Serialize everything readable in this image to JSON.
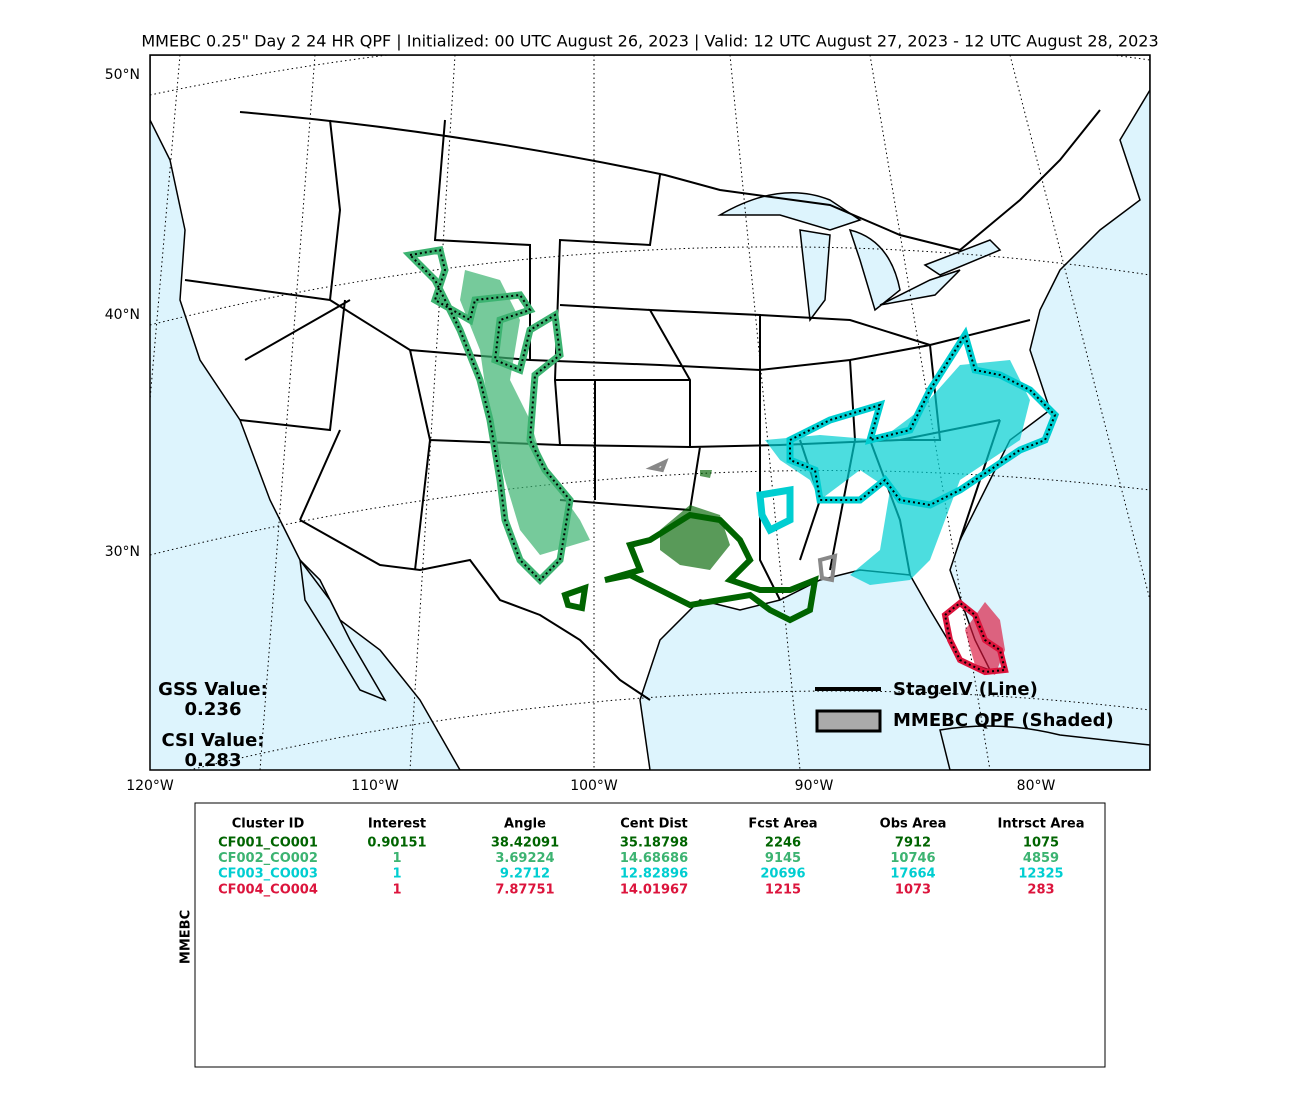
{
  "title": "MMEBC 0.25\" Day 2 24 HR QPF | Initialized: 00 UTC August 26, 2023 | Valid: 12 UTC August 27, 2023 - 12 UTC August 28, 2023",
  "map": {
    "lat_labels": [
      "50°N",
      "40°N",
      "30°N"
    ],
    "lon_labels": [
      "120°W",
      "110°W",
      "100°W",
      "90°W",
      "80°W"
    ],
    "stats": [
      {
        "label": "GSS Value:",
        "value": "0.236"
      },
      {
        "label": "CSI Value:",
        "value": "0.283"
      }
    ],
    "legend": [
      "StageIV (Line)",
      "MMEBC QPF (Shaded)"
    ]
  },
  "table": {
    "side_label": "MMEBC",
    "columns": [
      "Cluster ID",
      "Interest",
      "Angle",
      "Cent Dist",
      "Fcst Area",
      "Obs Area",
      "Intrsct Area"
    ],
    "row_colors": [
      "#006400",
      "#3cb371",
      "#00ced1",
      "#dc143c"
    ],
    "rows": [
      [
        "CF001_CO001",
        "0.90151",
        "38.42091",
        "35.18798",
        "2246",
        "7912",
        "1075"
      ],
      [
        "CF002_CO002",
        "1",
        "3.69224",
        "14.68686",
        "9145",
        "10746",
        "4859"
      ],
      [
        "CF003_CO003",
        "1",
        "9.2712",
        "12.82896",
        "20696",
        "17664",
        "12325"
      ],
      [
        "CF004_CO004",
        "1",
        "7.87751",
        "14.01967",
        "1215",
        "1073",
        "283"
      ]
    ]
  }
}
